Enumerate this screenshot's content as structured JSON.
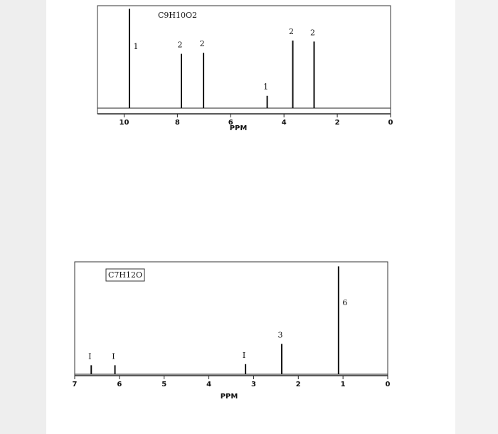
{
  "chart_data": [
    {
      "type": "spectrum",
      "title": "C9H10O2",
      "x_label": "PPM",
      "x": [
        9.8,
        7.85,
        7.02,
        4.63,
        3.67,
        2.87
      ],
      "values": [
        97,
        53,
        54,
        12,
        66,
        65
      ],
      "integrals": [
        "1",
        "2",
        "2",
        "1",
        "2",
        "2"
      ],
      "xlim": [
        11,
        0
      ],
      "xticks": [
        10,
        8,
        6,
        4,
        2,
        0
      ],
      "ylim": [
        0,
        100
      ],
      "color": "#111111",
      "title_boxed": false
    },
    {
      "type": "spectrum",
      "title": "C7H12O",
      "x_label": "PPM",
      "x": [
        6.63,
        6.1,
        3.18,
        2.37,
        1.1
      ],
      "values": [
        8,
        8,
        9,
        27,
        96
      ],
      "integrals": [
        "I",
        "I",
        "I",
        "3",
        "6"
      ],
      "xlim": [
        7,
        0
      ],
      "xticks": [
        7,
        6,
        5,
        4,
        3,
        2,
        1,
        0
      ],
      "ylim": [
        0,
        100
      ],
      "color": "#111111",
      "title_boxed": true
    }
  ]
}
